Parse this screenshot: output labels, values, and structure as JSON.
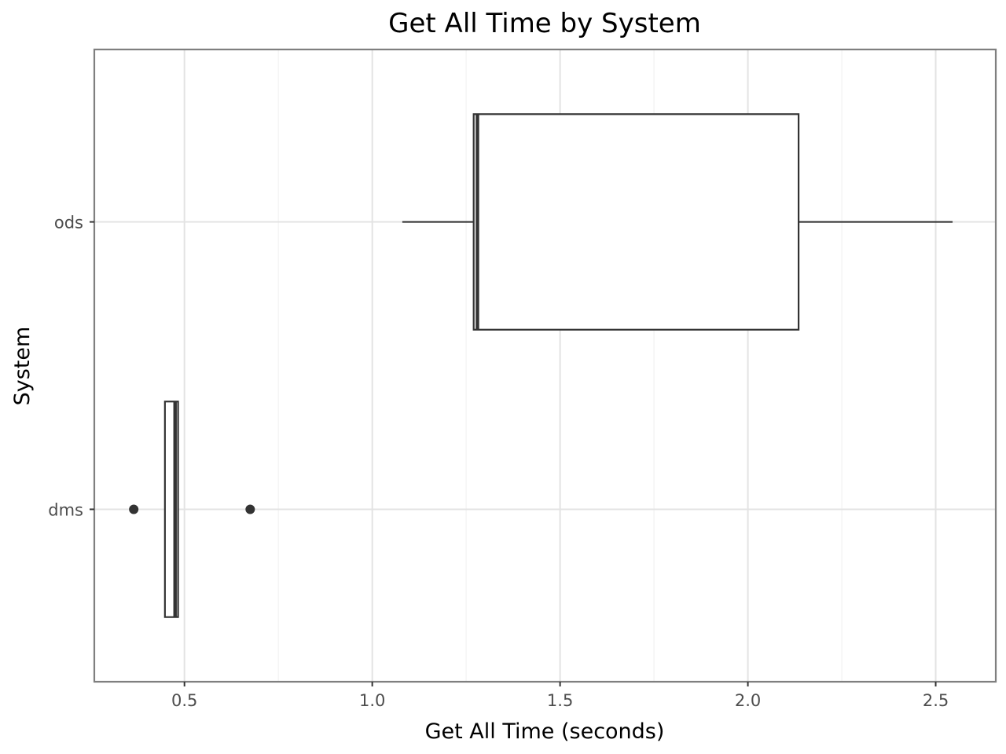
{
  "chart_data": {
    "type": "boxplot",
    "orientation": "horizontal",
    "title": "Get All Time by System",
    "xlabel": "Get All Time (seconds)",
    "ylabel": "System",
    "xlim": [
      0.26,
      2.66
    ],
    "x_ticks": [
      {
        "value": 0.5,
        "label": "0.5"
      },
      {
        "value": 1.0,
        "label": "1.0"
      },
      {
        "value": 1.5,
        "label": "1.5"
      },
      {
        "value": 2.0,
        "label": "2.0"
      },
      {
        "value": 2.5,
        "label": "2.5"
      }
    ],
    "categories": [
      "dms",
      "ods"
    ],
    "series": [
      {
        "category": "dms",
        "whisker_low": 0.448,
        "q1": 0.448,
        "median": 0.475,
        "q3": 0.483,
        "whisker_high": 0.483,
        "outliers": [
          0.365,
          0.675
        ]
      },
      {
        "category": "ods",
        "whisker_low": 1.08,
        "q1": 1.27,
        "median": 1.28,
        "q3": 2.135,
        "whisker_high": 2.545,
        "outliers": []
      }
    ],
    "grid": true,
    "legend": "none"
  }
}
